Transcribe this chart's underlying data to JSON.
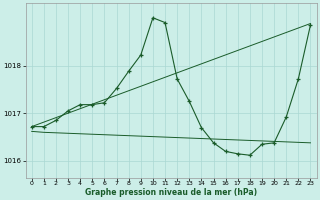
{
  "xlabel": "Graphe pression niveau de la mer (hPa)",
  "bg_color": "#cceee8",
  "grid_color": "#aad8d3",
  "line_color": "#1a5c2a",
  "ylim": [
    1015.65,
    1019.3
  ],
  "yticks": [
    1016,
    1017,
    1018
  ],
  "xlim": [
    -0.5,
    23.5
  ],
  "xticks": [
    0,
    1,
    2,
    3,
    4,
    5,
    6,
    7,
    8,
    9,
    10,
    11,
    12,
    13,
    14,
    15,
    16,
    17,
    18,
    19,
    20,
    21,
    22,
    23
  ],
  "line1_x": [
    0,
    1,
    2,
    3,
    4,
    5,
    6,
    7,
    8,
    9,
    10,
    11,
    12,
    13,
    14,
    15,
    16,
    17,
    18,
    19,
    20,
    21,
    22,
    23
  ],
  "line1_y": [
    1016.72,
    1016.72,
    1016.85,
    1017.05,
    1017.18,
    1017.18,
    1017.22,
    1017.52,
    1017.88,
    1018.22,
    1019.0,
    1018.9,
    1017.72,
    1017.25,
    1016.7,
    1016.38,
    1016.2,
    1016.15,
    1016.12,
    1016.35,
    1016.38,
    1016.92,
    1017.72,
    1018.85
  ],
  "line2_x": [
    0,
    23
  ],
  "line2_y": [
    1016.72,
    1018.88
  ],
  "line3_x": [
    0,
    1,
    2,
    3,
    4,
    5,
    6,
    7,
    8,
    9,
    10,
    11,
    12,
    13,
    14,
    15,
    16,
    17,
    18,
    19,
    20,
    21,
    22,
    23
  ],
  "line3_y": [
    1016.62,
    1016.6,
    1016.59,
    1016.58,
    1016.57,
    1016.56,
    1016.55,
    1016.54,
    1016.53,
    1016.52,
    1016.51,
    1016.5,
    1016.49,
    1016.48,
    1016.47,
    1016.46,
    1016.45,
    1016.44,
    1016.43,
    1016.42,
    1016.41,
    1016.4,
    1016.39,
    1016.38
  ]
}
